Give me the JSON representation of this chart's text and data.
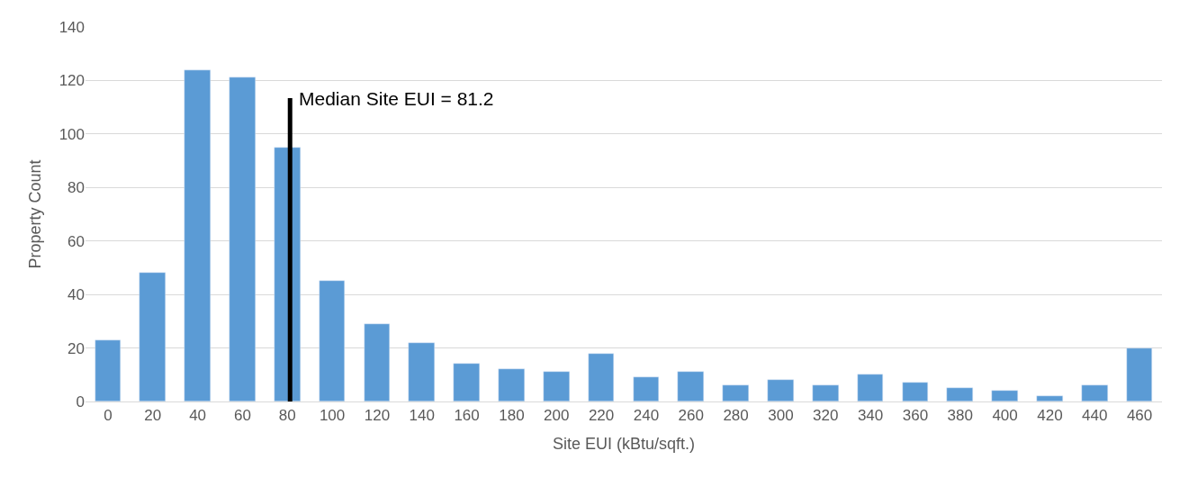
{
  "chart_data": {
    "type": "bar",
    "xlabel": "Site EUI (kBtu/sqft.)",
    "ylabel": "Property Count",
    "x": [
      0,
      20,
      40,
      60,
      80,
      100,
      120,
      140,
      160,
      180,
      200,
      220,
      240,
      260,
      280,
      300,
      320,
      340,
      360,
      380,
      400,
      420,
      440,
      460
    ],
    "values": [
      23,
      48,
      124,
      121,
      95,
      45,
      29,
      22,
      14,
      12,
      11,
      18,
      9,
      11,
      6,
      8,
      6,
      10,
      7,
      5,
      4,
      2,
      6,
      20
    ],
    "color": "#5b9bd5",
    "xlim": [
      -10,
      470
    ],
    "xticks": [
      0,
      20,
      40,
      60,
      80,
      100,
      120,
      140,
      160,
      180,
      200,
      220,
      240,
      260,
      280,
      300,
      320,
      340,
      360,
      380,
      400,
      420,
      440,
      460
    ],
    "ylim": [
      0,
      140
    ],
    "yticks": [
      0,
      20,
      40,
      60,
      80,
      100,
      120,
      140
    ],
    "grid": "y",
    "ref_lines": [
      {
        "axis": "x",
        "value": 81.2,
        "label": "Median Site EUI = 81.2",
        "color": "#000000"
      }
    ]
  }
}
